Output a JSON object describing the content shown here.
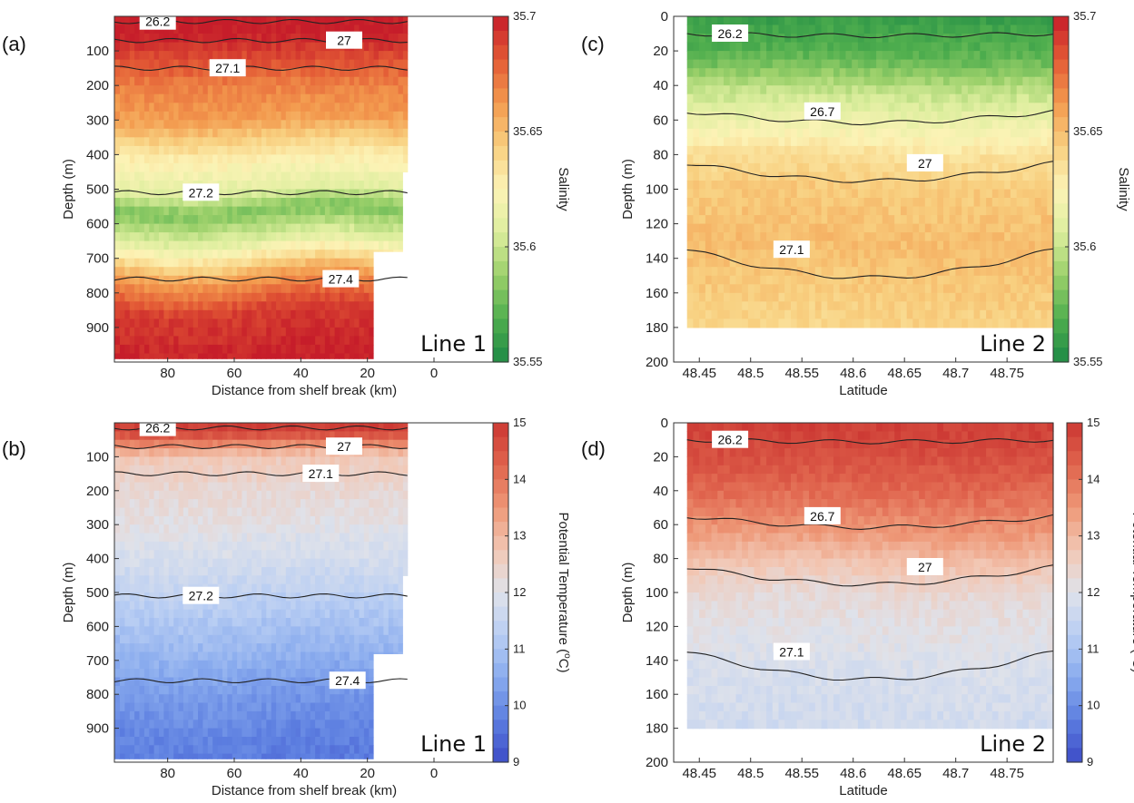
{
  "chart_data": [
    {
      "id": "a",
      "type": "heatmap",
      "panel_label": "(a)",
      "line_label": "Line 1",
      "variable": "salinity",
      "xlabel": "Distance from shelf break (km)",
      "ylabel": "Depth (m)",
      "colorbar_label": "Salinity",
      "xlim": [
        96,
        -18
      ],
      "ylim": [
        1000,
        0
      ],
      "x_ticks": [
        "80",
        "60",
        "40",
        "20",
        "0"
      ],
      "x_tick_values": [
        80,
        60,
        40,
        20,
        0
      ],
      "y_ticks": [
        "100",
        "200",
        "300",
        "400",
        "500",
        "600",
        "700",
        "800",
        "900"
      ],
      "y_tick_values": [
        100,
        200,
        300,
        400,
        500,
        600,
        700,
        800,
        900
      ],
      "colorbar_range": [
        35.55,
        35.7
      ],
      "colorbar_ticks": [
        "35.7",
        "35.65",
        "35.6",
        "35.55"
      ],
      "colorbar_tick_values": [
        35.7,
        35.65,
        35.6,
        35.55
      ],
      "profile_depths": [
        0,
        50,
        100,
        150,
        200,
        300,
        400,
        500,
        560,
        650,
        750,
        850,
        1000
      ],
      "profile_values": [
        35.7,
        35.7,
        35.69,
        35.68,
        35.67,
        35.66,
        35.63,
        35.61,
        35.58,
        35.61,
        35.66,
        35.69,
        35.7
      ],
      "contours": [
        {
          "label": "26.2",
          "depth": 15,
          "label_x": 83
        },
        {
          "label": "27",
          "depth": 70,
          "label_x": 27
        },
        {
          "label": "27.1",
          "depth": 150,
          "label_x": 62
        },
        {
          "label": "27.2",
          "depth": 510,
          "label_x": 70
        },
        {
          "label": "27.4",
          "depth": 760,
          "label_x": 28
        }
      ]
    },
    {
      "id": "b",
      "type": "heatmap",
      "panel_label": "(b)",
      "line_label": "Line 1",
      "variable": "temperature",
      "xlabel": "Distance from shelf break (km)",
      "ylabel": "Depth (m)",
      "colorbar_label": "Potential Temperature (",
      "colorbar_label_sup": "o",
      "colorbar_label_tail": "C)",
      "xlim": [
        96,
        -18
      ],
      "ylim": [
        1000,
        0
      ],
      "x_ticks": [
        "80",
        "60",
        "40",
        "20",
        "0"
      ],
      "x_tick_values": [
        80,
        60,
        40,
        20,
        0
      ],
      "y_ticks": [
        "100",
        "200",
        "300",
        "400",
        "500",
        "600",
        "700",
        "800",
        "900"
      ],
      "y_tick_values": [
        100,
        200,
        300,
        400,
        500,
        600,
        700,
        800,
        900
      ],
      "colorbar_range": [
        9,
        15
      ],
      "colorbar_ticks": [
        "15",
        "14",
        "13",
        "12",
        "11",
        "10",
        "9"
      ],
      "colorbar_tick_values": [
        15,
        14,
        13,
        12,
        11,
        10,
        9
      ],
      "profile_depths": [
        0,
        30,
        60,
        100,
        200,
        300,
        400,
        500,
        600,
        700,
        800,
        900,
        1000
      ],
      "profile_values": [
        15.0,
        14.7,
        13.8,
        12.7,
        12.3,
        12.1,
        11.8,
        11.4,
        11.0,
        10.6,
        10.2,
        9.9,
        9.7
      ],
      "contours": [
        {
          "label": "26.2",
          "depth": 15,
          "label_x": 83
        },
        {
          "label": "27",
          "depth": 70,
          "label_x": 27
        },
        {
          "label": "27.1",
          "depth": 150,
          "label_x": 34
        },
        {
          "label": "27.2",
          "depth": 510,
          "label_x": 70
        },
        {
          "label": "27.4",
          "depth": 760,
          "label_x": 26
        }
      ]
    },
    {
      "id": "c",
      "type": "heatmap",
      "panel_label": "(c)",
      "line_label": "Line 2",
      "variable": "salinity",
      "xlabel": "Latitude",
      "ylabel": "Depth (m)",
      "colorbar_label": "Salinity",
      "xlim": [
        48.425,
        48.795
      ],
      "ylim": [
        200,
        0
      ],
      "x_ticks": [
        "48.45",
        "48.5",
        "48.55",
        "48.6",
        "48.65",
        "48.7",
        "48.75"
      ],
      "x_tick_values": [
        48.45,
        48.5,
        48.55,
        48.6,
        48.65,
        48.7,
        48.75
      ],
      "y_ticks": [
        "0",
        "20",
        "40",
        "60",
        "80",
        "100",
        "120",
        "140",
        "160",
        "180",
        "200"
      ],
      "y_tick_values": [
        0,
        20,
        40,
        60,
        80,
        100,
        120,
        140,
        160,
        180,
        200
      ],
      "colorbar_range": [
        35.55,
        35.7
      ],
      "colorbar_ticks": [
        "35.7",
        "35.65",
        "35.6",
        "35.55"
      ],
      "colorbar_tick_values": [
        35.7,
        35.65,
        35.6,
        35.55
      ],
      "profile_depths": [
        0,
        10,
        20,
        30,
        40,
        50,
        60,
        70,
        80,
        100,
        130,
        160,
        180
      ],
      "profile_values": [
        35.56,
        35.565,
        35.57,
        35.58,
        35.595,
        35.605,
        35.615,
        35.625,
        35.635,
        35.645,
        35.65,
        35.645,
        35.64
      ],
      "contours": [
        {
          "label": "26.2",
          "depth": 10,
          "label_x": 48.48
        },
        {
          "label": "26.7",
          "depth": 55,
          "label_x": 48.57
        },
        {
          "label": "27",
          "depth": 85,
          "label_x": 48.67
        },
        {
          "label": "27.1",
          "depth": 135,
          "label_x": 48.54
        }
      ]
    },
    {
      "id": "d",
      "type": "heatmap",
      "panel_label": "(d)",
      "line_label": "Line 2",
      "variable": "temperature",
      "xlabel": "Latitude",
      "ylabel": "Depth (m)",
      "colorbar_label": "Potential Temperature (",
      "colorbar_label_sup": "o",
      "colorbar_label_tail": "C)",
      "xlim": [
        48.425,
        48.795
      ],
      "ylim": [
        200,
        0
      ],
      "x_ticks": [
        "48.45",
        "48.5",
        "48.55",
        "48.6",
        "48.65",
        "48.7",
        "48.75"
      ],
      "x_tick_values": [
        48.45,
        48.5,
        48.55,
        48.6,
        48.65,
        48.7,
        48.75
      ],
      "y_ticks": [
        "0",
        "20",
        "40",
        "60",
        "80",
        "100",
        "120",
        "140",
        "160",
        "180",
        "200"
      ],
      "y_tick_values": [
        0,
        20,
        40,
        60,
        80,
        100,
        120,
        140,
        160,
        180,
        200
      ],
      "colorbar_range": [
        9,
        15
      ],
      "colorbar_ticks": [
        "15",
        "14",
        "13",
        "12",
        "11",
        "10",
        "9"
      ],
      "colorbar_tick_values": [
        15,
        14,
        13,
        12,
        11,
        10,
        9
      ],
      "profile_depths": [
        0,
        20,
        40,
        60,
        70,
        80,
        90,
        100,
        120,
        140,
        160,
        180
      ],
      "profile_values": [
        14.9,
        14.6,
        14.2,
        13.6,
        13.3,
        12.9,
        12.6,
        12.3,
        12.1,
        11.9,
        11.8,
        11.7
      ],
      "contours": [
        {
          "label": "26.2",
          "depth": 10,
          "label_x": 48.48
        },
        {
          "label": "26.7",
          "depth": 55,
          "label_x": 48.57
        },
        {
          "label": "27",
          "depth": 85,
          "label_x": 48.67
        },
        {
          "label": "27.1",
          "depth": 135,
          "label_x": 48.54
        }
      ]
    }
  ],
  "colors": {
    "salinity": [
      "#1e8a45",
      "#4fae4e",
      "#9bd06a",
      "#ddee9e",
      "#fcf3b6",
      "#f8cf7f",
      "#f39a4e",
      "#e35a35",
      "#c61d2a"
    ],
    "temperature": [
      "#3d4bc7",
      "#5c7ee0",
      "#89abee",
      "#b9cef3",
      "#dfe2ea",
      "#f2c7b4",
      "#ee9877",
      "#e0644d",
      "#cc3833"
    ],
    "contour": "#222222",
    "axis": "#333333"
  }
}
